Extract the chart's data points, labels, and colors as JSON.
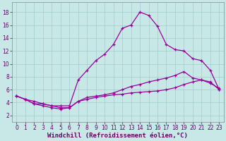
{
  "xlabel": "Windchill (Refroidissement éolien,°C)",
  "background_color": "#c8e8e8",
  "grid_color": "#a0cccc",
  "line_color": "#990099",
  "xlim": [
    -0.5,
    23.5
  ],
  "ylim": [
    1.0,
    19.5
  ],
  "xticks": [
    0,
    1,
    2,
    3,
    4,
    5,
    6,
    7,
    8,
    9,
    10,
    11,
    12,
    13,
    14,
    15,
    16,
    17,
    18,
    19,
    20,
    21,
    22,
    23
  ],
  "yticks": [
    2,
    4,
    6,
    8,
    10,
    12,
    14,
    16,
    18
  ],
  "curve1_x": [
    0,
    1,
    2,
    3,
    4,
    5,
    6,
    7,
    8,
    9,
    10,
    11,
    12,
    13,
    14,
    15,
    16,
    17,
    18,
    19,
    20,
    21,
    22,
    23
  ],
  "curve1_y": [
    5.0,
    4.5,
    4.2,
    3.8,
    3.5,
    3.5,
    3.5,
    7.5,
    9.0,
    10.5,
    11.5,
    13.0,
    15.5,
    16.0,
    18.0,
    17.5,
    15.8,
    13.0,
    12.2,
    12.0,
    10.8,
    10.5,
    9.0,
    6.0
  ],
  "curve2_x": [
    0,
    1,
    2,
    3,
    4,
    5,
    6,
    7,
    8,
    9,
    10,
    11,
    12,
    13,
    14,
    15,
    16,
    17,
    18,
    19,
    20,
    21,
    22,
    23
  ],
  "curve2_y": [
    5.0,
    4.5,
    3.8,
    3.8,
    3.5,
    3.2,
    3.2,
    4.2,
    4.8,
    5.0,
    5.2,
    5.5,
    6.0,
    6.5,
    6.8,
    7.2,
    7.5,
    7.8,
    8.2,
    8.8,
    7.8,
    7.5,
    7.0,
    6.2
  ],
  "curve3_x": [
    0,
    1,
    2,
    3,
    4,
    5,
    6,
    7,
    8,
    9,
    10,
    11,
    12,
    13,
    14,
    15,
    16,
    17,
    18,
    19,
    20,
    21,
    22,
    23
  ],
  "curve3_y": [
    5.0,
    4.5,
    3.8,
    3.5,
    3.2,
    3.0,
    3.2,
    4.2,
    4.5,
    4.8,
    5.0,
    5.2,
    5.3,
    5.5,
    5.6,
    5.7,
    5.8,
    6.0,
    6.3,
    6.8,
    7.2,
    7.5,
    7.2,
    6.0
  ],
  "marker": "+",
  "marker_size": 3,
  "line_width": 0.9,
  "tick_labelsize": 5.5,
  "xlabel_fontsize": 6.5
}
